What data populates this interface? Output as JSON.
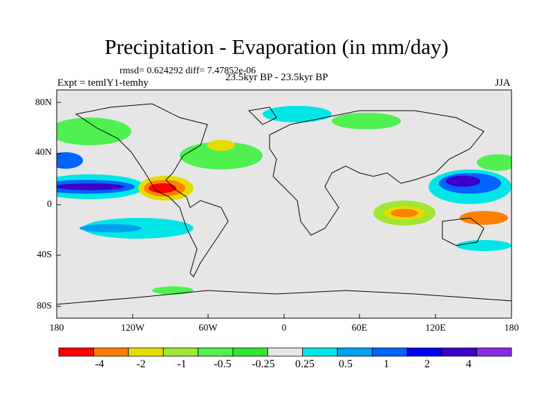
{
  "header": {
    "title": "Precipitation - Evaporation (in mm/day)",
    "stats": "rmsd= 0.624292 diff= 7.47852e-06",
    "experiment": "Expt = temlY1-temhy",
    "period": "23.5kyr BP - 23.5kyr BP",
    "season": "JJA"
  },
  "axes": {
    "lat_labels": [
      "80N",
      "40N",
      "0",
      "40S",
      "80S"
    ],
    "lon_labels": [
      "180",
      "120W",
      "60W",
      "0",
      "60E",
      "120E",
      "180"
    ]
  },
  "colorbar": {
    "colors": [
      "#ff0000",
      "#ff8000",
      "#e6dc00",
      "#a0e632",
      "#50f050",
      "#32e632",
      "#e6e6e6",
      "#00e6e6",
      "#00a0f0",
      "#0064ff",
      "#0000f0",
      "#3c00c8",
      "#8a2be2"
    ],
    "labels": [
      "-4",
      "-2",
      "-1",
      "-0.5",
      "-0.25",
      "0.25",
      "0.5",
      "1",
      "2",
      "4"
    ]
  },
  "colors": {
    "land_ocean_background": "#e6e6e6",
    "coastline": "#000000"
  }
}
